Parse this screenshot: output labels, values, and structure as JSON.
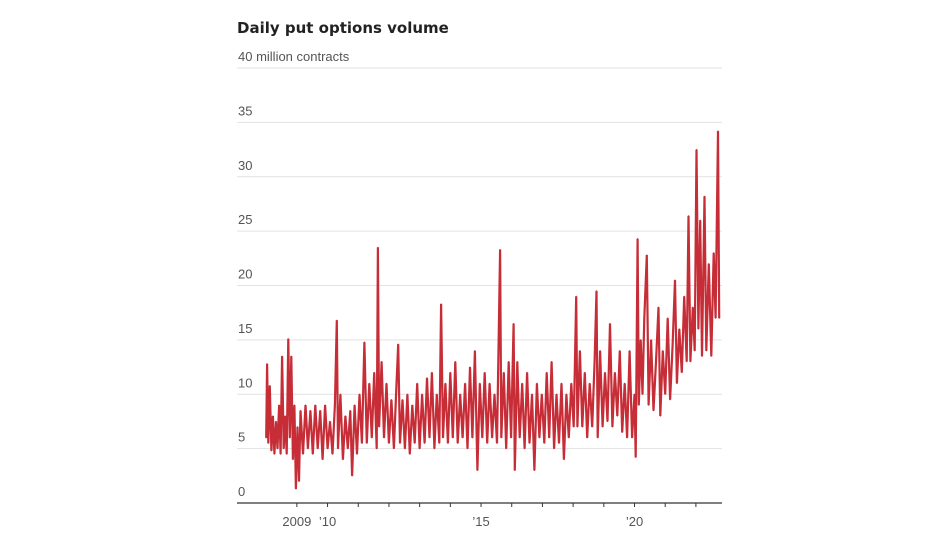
{
  "chart_data": {
    "type": "line",
    "title": "Daily put options volume",
    "ylabel": "million contracts",
    "xlabel": "",
    "ylim": [
      0,
      40
    ],
    "xlim": [
      2007.05,
      2022.85
    ],
    "y_ticks": [
      {
        "value": 0,
        "label": "0"
      },
      {
        "value": 5,
        "label": "5"
      },
      {
        "value": 10,
        "label": "10"
      },
      {
        "value": 15,
        "label": "15"
      },
      {
        "value": 20,
        "label": "20"
      },
      {
        "value": 25,
        "label": "25"
      },
      {
        "value": 30,
        "label": "30"
      },
      {
        "value": 35,
        "label": "35"
      },
      {
        "value": 40,
        "label": "40 million contracts"
      }
    ],
    "x_ticks": [
      2009,
      2010,
      2011,
      2012,
      2013,
      2014,
      2015,
      2016,
      2017,
      2018,
      2019,
      2020,
      2021,
      2022
    ],
    "x_labels": [
      {
        "value": 2009,
        "label": "2009"
      },
      {
        "value": 2010,
        "label": "’10"
      },
      {
        "value": 2015,
        "label": "’15"
      },
      {
        "value": 2020,
        "label": "’20"
      }
    ],
    "grid": true,
    "color": "#c62d37",
    "series": [
      {
        "name": "Daily put options volume",
        "points": [
          [
            2008.0,
            6
          ],
          [
            2008.03,
            12.8
          ],
          [
            2008.07,
            5.5
          ],
          [
            2008.12,
            10.8
          ],
          [
            2008.17,
            4.8
          ],
          [
            2008.22,
            8
          ],
          [
            2008.27,
            4.5
          ],
          [
            2008.32,
            7.5
          ],
          [
            2008.37,
            5
          ],
          [
            2008.42,
            9
          ],
          [
            2008.47,
            4.5
          ],
          [
            2008.52,
            13.5
          ],
          [
            2008.57,
            5
          ],
          [
            2008.62,
            8
          ],
          [
            2008.67,
            4.5
          ],
          [
            2008.72,
            15.1
          ],
          [
            2008.77,
            6
          ],
          [
            2008.82,
            13.5
          ],
          [
            2008.87,
            4
          ],
          [
            2008.92,
            9
          ],
          [
            2008.97,
            1.3
          ],
          [
            2009.02,
            7
          ],
          [
            2009.07,
            2
          ],
          [
            2009.12,
            8.5
          ],
          [
            2009.2,
            4.5
          ],
          [
            2009.28,
            9
          ],
          [
            2009.36,
            5
          ],
          [
            2009.44,
            8.5
          ],
          [
            2009.52,
            4.5
          ],
          [
            2009.6,
            9
          ],
          [
            2009.68,
            5
          ],
          [
            2009.76,
            8.5
          ],
          [
            2009.84,
            4
          ],
          [
            2009.92,
            9
          ],
          [
            2010.0,
            5
          ],
          [
            2010.08,
            7.5
          ],
          [
            2010.16,
            4.5
          ],
          [
            2010.24,
            9
          ],
          [
            2010.3,
            16.8
          ],
          [
            2010.34,
            5
          ],
          [
            2010.42,
            10
          ],
          [
            2010.5,
            4
          ],
          [
            2010.58,
            8
          ],
          [
            2010.66,
            5
          ],
          [
            2010.74,
            8.5
          ],
          [
            2010.8,
            2.5
          ],
          [
            2010.88,
            9
          ],
          [
            2010.96,
            4.5
          ],
          [
            2011.04,
            10
          ],
          [
            2011.12,
            5.5
          ],
          [
            2011.2,
            14.8
          ],
          [
            2011.28,
            5.5
          ],
          [
            2011.36,
            11
          ],
          [
            2011.44,
            6
          ],
          [
            2011.52,
            12
          ],
          [
            2011.6,
            5
          ],
          [
            2011.64,
            23.5
          ],
          [
            2011.68,
            7
          ],
          [
            2011.76,
            13
          ],
          [
            2011.84,
            6
          ],
          [
            2011.92,
            11
          ],
          [
            2012.0,
            5.5
          ],
          [
            2012.08,
            9.5
          ],
          [
            2012.16,
            5
          ],
          [
            2012.24,
            10.5
          ],
          [
            2012.3,
            14.6
          ],
          [
            2012.36,
            5.5
          ],
          [
            2012.44,
            9.5
          ],
          [
            2012.52,
            5
          ],
          [
            2012.6,
            10
          ],
          [
            2012.68,
            4.5
          ],
          [
            2012.76,
            9
          ],
          [
            2012.84,
            5.5
          ],
          [
            2012.92,
            11
          ],
          [
            2013.0,
            5
          ],
          [
            2013.08,
            10
          ],
          [
            2013.16,
            5.5
          ],
          [
            2013.24,
            11.5
          ],
          [
            2013.32,
            6
          ],
          [
            2013.4,
            12
          ],
          [
            2013.48,
            5
          ],
          [
            2013.56,
            10
          ],
          [
            2013.64,
            5.5
          ],
          [
            2013.7,
            18.3
          ],
          [
            2013.76,
            6
          ],
          [
            2013.84,
            11
          ],
          [
            2013.92,
            5.5
          ],
          [
            2014.0,
            12
          ],
          [
            2014.08,
            6
          ],
          [
            2014.16,
            13
          ],
          [
            2014.24,
            5.5
          ],
          [
            2014.32,
            10
          ],
          [
            2014.4,
            6
          ],
          [
            2014.48,
            11
          ],
          [
            2014.56,
            5
          ],
          [
            2014.64,
            12.5
          ],
          [
            2014.72,
            6
          ],
          [
            2014.8,
            14
          ],
          [
            2014.88,
            3
          ],
          [
            2014.96,
            11
          ],
          [
            2015.04,
            6
          ],
          [
            2015.12,
            12
          ],
          [
            2015.2,
            5.5
          ],
          [
            2015.28,
            11
          ],
          [
            2015.36,
            6
          ],
          [
            2015.44,
            10
          ],
          [
            2015.52,
            5.5
          ],
          [
            2015.62,
            23.3
          ],
          [
            2015.66,
            6
          ],
          [
            2015.74,
            12
          ],
          [
            2015.82,
            5
          ],
          [
            2015.9,
            13
          ],
          [
            2015.98,
            6
          ],
          [
            2016.06,
            16.5
          ],
          [
            2016.1,
            3
          ],
          [
            2016.18,
            13
          ],
          [
            2016.26,
            6
          ],
          [
            2016.34,
            11
          ],
          [
            2016.42,
            5
          ],
          [
            2016.5,
            12
          ],
          [
            2016.58,
            5.5
          ],
          [
            2016.66,
            10
          ],
          [
            2016.74,
            3
          ],
          [
            2016.82,
            11
          ],
          [
            2016.9,
            6
          ],
          [
            2016.98,
            10
          ],
          [
            2017.06,
            5.5
          ],
          [
            2017.14,
            12
          ],
          [
            2017.22,
            6
          ],
          [
            2017.3,
            13
          ],
          [
            2017.38,
            5
          ],
          [
            2017.46,
            10
          ],
          [
            2017.54,
            5.5
          ],
          [
            2017.62,
            11
          ],
          [
            2017.7,
            4
          ],
          [
            2017.78,
            10
          ],
          [
            2017.86,
            6
          ],
          [
            2017.94,
            11
          ],
          [
            2018.02,
            7
          ],
          [
            2018.1,
            19
          ],
          [
            2018.14,
            7
          ],
          [
            2018.22,
            14
          ],
          [
            2018.3,
            7
          ],
          [
            2018.38,
            12
          ],
          [
            2018.46,
            6
          ],
          [
            2018.54,
            11
          ],
          [
            2018.62,
            7
          ],
          [
            2018.7,
            13
          ],
          [
            2018.76,
            19.5
          ],
          [
            2018.8,
            6
          ],
          [
            2018.88,
            14
          ],
          [
            2018.96,
            7
          ],
          [
            2019.04,
            12
          ],
          [
            2019.12,
            7.5
          ],
          [
            2019.2,
            16.5
          ],
          [
            2019.28,
            7
          ],
          [
            2019.36,
            12
          ],
          [
            2019.44,
            8
          ],
          [
            2019.52,
            14
          ],
          [
            2019.6,
            6.5
          ],
          [
            2019.68,
            11
          ],
          [
            2019.76,
            6
          ],
          [
            2019.84,
            14
          ],
          [
            2019.92,
            6
          ],
          [
            2020.0,
            10
          ],
          [
            2020.04,
            4.2
          ],
          [
            2020.1,
            24.3
          ],
          [
            2020.14,
            9
          ],
          [
            2020.2,
            15
          ],
          [
            2020.26,
            10
          ],
          [
            2020.32,
            17
          ],
          [
            2020.4,
            22.8
          ],
          [
            2020.46,
            9
          ],
          [
            2020.54,
            15
          ],
          [
            2020.62,
            8.5
          ],
          [
            2020.7,
            13
          ],
          [
            2020.78,
            18
          ],
          [
            2020.84,
            8
          ],
          [
            2020.92,
            14
          ],
          [
            2021.0,
            10
          ],
          [
            2021.08,
            17
          ],
          [
            2021.16,
            9.5
          ],
          [
            2021.24,
            14.5
          ],
          [
            2021.32,
            20.5
          ],
          [
            2021.38,
            11
          ],
          [
            2021.46,
            16
          ],
          [
            2021.54,
            12
          ],
          [
            2021.62,
            19
          ],
          [
            2021.7,
            13
          ],
          [
            2021.76,
            26.4
          ],
          [
            2021.82,
            13
          ],
          [
            2021.9,
            18
          ],
          [
            2021.96,
            14
          ],
          [
            2022.02,
            32.5
          ],
          [
            2022.08,
            16
          ],
          [
            2022.14,
            26
          ],
          [
            2022.2,
            13.5
          ],
          [
            2022.28,
            28.2
          ],
          [
            2022.34,
            14
          ],
          [
            2022.42,
            22
          ],
          [
            2022.5,
            13.5
          ],
          [
            2022.58,
            23
          ],
          [
            2022.64,
            17
          ],
          [
            2022.72,
            34.2
          ],
          [
            2022.76,
            17
          ]
        ]
      }
    ]
  }
}
